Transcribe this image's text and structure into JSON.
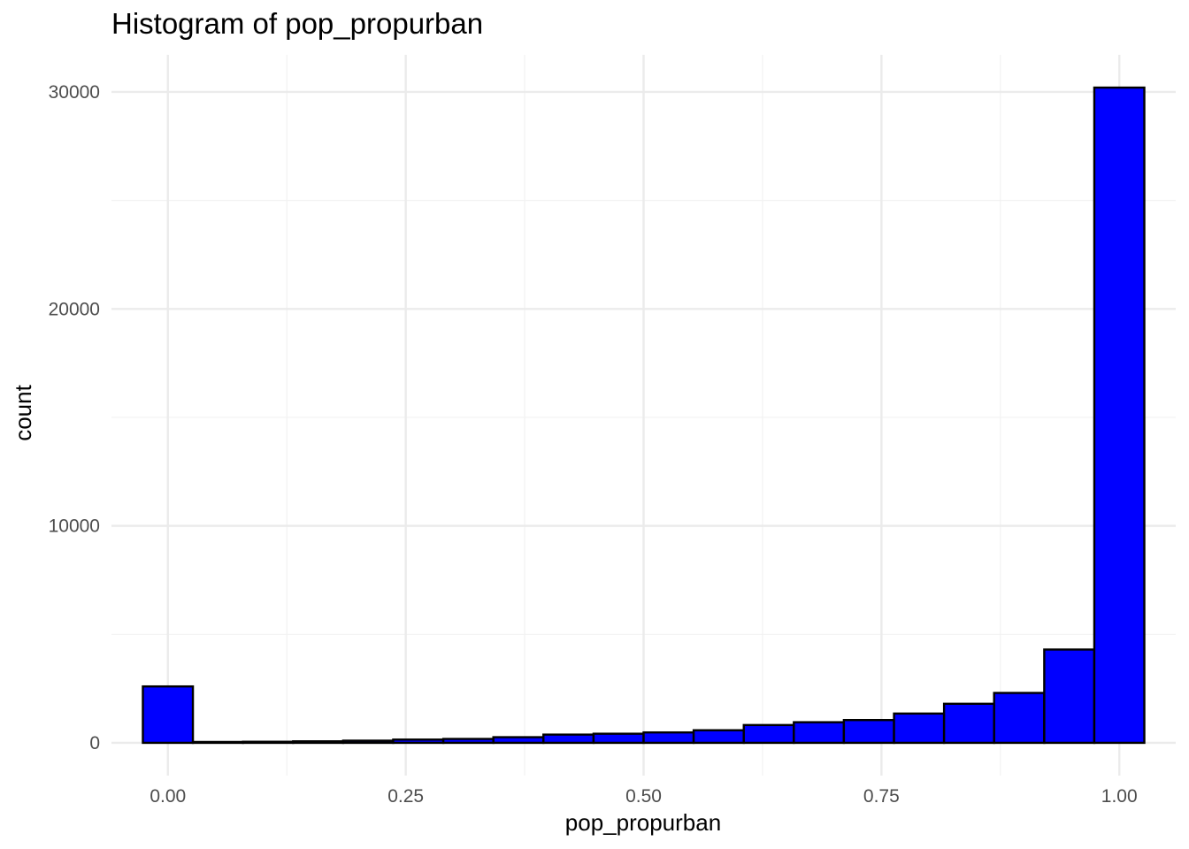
{
  "chart_data": {
    "type": "bar",
    "title": "Histogram of pop_propurban",
    "xlabel": "pop_propurban",
    "ylabel": "count",
    "bar_color": "#0000ff",
    "bar_outline_color": "#000000",
    "grid": true,
    "legend": "none",
    "bin_width": 0.0526,
    "bins": [
      {
        "x_min": -0.0263,
        "x_max": 0.0263,
        "count": 2600
      },
      {
        "x_min": 0.0263,
        "x_max": 0.0789,
        "count": 40
      },
      {
        "x_min": 0.0789,
        "x_max": 0.1316,
        "count": 50
      },
      {
        "x_min": 0.1316,
        "x_max": 0.1842,
        "count": 70
      },
      {
        "x_min": 0.1842,
        "x_max": 0.2368,
        "count": 100
      },
      {
        "x_min": 0.2368,
        "x_max": 0.2895,
        "count": 150
      },
      {
        "x_min": 0.2895,
        "x_max": 0.3421,
        "count": 180
      },
      {
        "x_min": 0.3421,
        "x_max": 0.3947,
        "count": 260
      },
      {
        "x_min": 0.3947,
        "x_max": 0.4474,
        "count": 380
      },
      {
        "x_min": 0.4474,
        "x_max": 0.5,
        "count": 420
      },
      {
        "x_min": 0.5,
        "x_max": 0.5526,
        "count": 480
      },
      {
        "x_min": 0.5526,
        "x_max": 0.6053,
        "count": 580
      },
      {
        "x_min": 0.6053,
        "x_max": 0.6579,
        "count": 820
      },
      {
        "x_min": 0.6579,
        "x_max": 0.7105,
        "count": 950
      },
      {
        "x_min": 0.7105,
        "x_max": 0.7632,
        "count": 1050
      },
      {
        "x_min": 0.7632,
        "x_max": 0.8158,
        "count": 1350
      },
      {
        "x_min": 0.8158,
        "x_max": 0.8684,
        "count": 1800
      },
      {
        "x_min": 0.8684,
        "x_max": 0.9211,
        "count": 2300
      },
      {
        "x_min": 0.9211,
        "x_max": 0.9737,
        "count": 4300
      },
      {
        "x_min": 0.9737,
        "x_max": 1.0263,
        "count": 30200
      }
    ],
    "xlim": [
      -0.0593,
      1.0593
    ],
    "ylim": [
      -1510,
      31710
    ],
    "x_ticks": [
      0,
      0.25,
      0.5,
      0.75,
      1.0
    ],
    "x_tick_labels": [
      "0.00",
      "0.25",
      "0.50",
      "0.75",
      "1.00"
    ],
    "y_ticks": [
      0,
      10000,
      20000,
      30000
    ],
    "y_tick_labels": [
      "0",
      "10000",
      "20000",
      "30000"
    ]
  }
}
